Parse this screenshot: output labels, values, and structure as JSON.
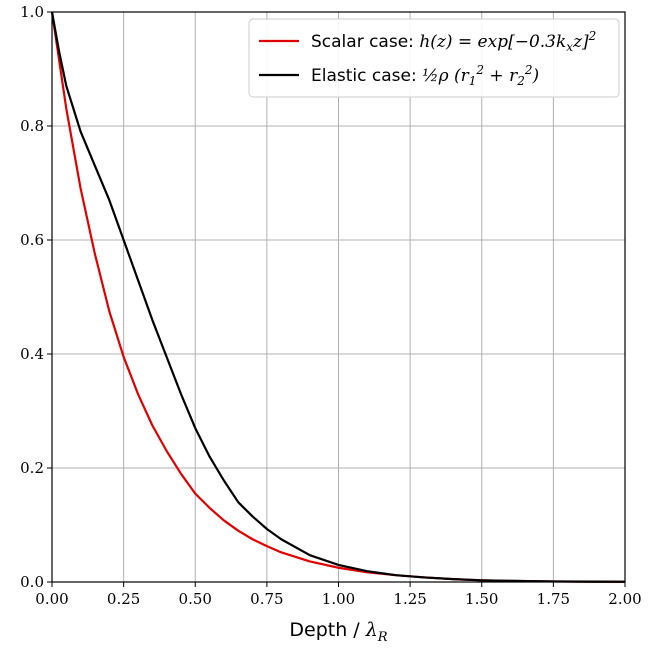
{
  "chart_data": {
    "type": "line",
    "title": "",
    "xlabel": "Depth / λ_R",
    "xlabel_text": "Depth / ",
    "xlabel_math": "λ",
    "xlabel_math_sub": "R",
    "ylabel": "",
    "xlim": [
      0,
      2
    ],
    "ylim": [
      0,
      1
    ],
    "x_ticks": [
      "0.00",
      "0.25",
      "0.50",
      "0.75",
      "1.00",
      "1.25",
      "1.50",
      "1.75",
      "2.00"
    ],
    "x_tick_values": [
      0,
      0.25,
      0.5,
      0.75,
      1.0,
      1.25,
      1.5,
      1.75,
      2.0
    ],
    "y_ticks": [
      "0.0",
      "0.2",
      "0.4",
      "0.6",
      "0.8",
      "1.0"
    ],
    "y_tick_values": [
      0,
      0.2,
      0.4,
      0.6,
      0.8,
      1.0
    ],
    "grid": true,
    "legend_position": "top-right",
    "series": [
      {
        "name": "Scalar case: h(z) = exp[−0.3k_x z]^2",
        "legend_prefix": "Scalar case: ",
        "legend_math": "h(z) = exp[−0.3k",
        "legend_math_sub": "x",
        "legend_math_tail": "z]",
        "legend_math_sup": "2",
        "color": "#e00000",
        "x": [
          0,
          0.05,
          0.1,
          0.15,
          0.2,
          0.25,
          0.3,
          0.35,
          0.4,
          0.45,
          0.5,
          0.55,
          0.6,
          0.65,
          0.7,
          0.75,
          0.8,
          0.9,
          1.0,
          1.1,
          1.2,
          1.25,
          1.3,
          1.4,
          1.5,
          1.6,
          1.75,
          1.9,
          2.0
        ],
        "y": [
          1.0,
          0.83,
          0.69,
          0.575,
          0.475,
          0.395,
          0.33,
          0.275,
          0.23,
          0.19,
          0.155,
          0.13,
          0.108,
          0.09,
          0.075,
          0.063,
          0.052,
          0.036,
          0.025,
          0.017,
          0.012,
          0.01,
          0.008,
          0.005,
          0.003,
          0.002,
          0.001,
          0.0005,
          0.0003
        ]
      },
      {
        "name": "Elastic case: ½ρ(r₁² + r₂²)",
        "legend_prefix": "Elastic case: ",
        "legend_math": "½ρ (r",
        "legend_math_sub": "1",
        "legend_math_sup": "2",
        "legend_math_mid": " + r",
        "legend_math_sub2": "2",
        "legend_math_sup2": "2",
        "legend_math_tail": ")",
        "color": "#000000",
        "x": [
          0,
          0.025,
          0.05,
          0.1,
          0.15,
          0.2,
          0.25,
          0.3,
          0.35,
          0.4,
          0.45,
          0.5,
          0.55,
          0.6,
          0.65,
          0.7,
          0.75,
          0.8,
          0.9,
          1.0,
          1.1,
          1.2,
          1.25,
          1.3,
          1.4,
          1.5,
          1.6,
          1.75,
          1.9,
          2.0
        ],
        "y": [
          1.0,
          0.93,
          0.87,
          0.79,
          0.73,
          0.67,
          0.6,
          0.53,
          0.46,
          0.395,
          0.33,
          0.27,
          0.22,
          0.178,
          0.14,
          0.115,
          0.093,
          0.075,
          0.047,
          0.03,
          0.019,
          0.012,
          0.01,
          0.008,
          0.005,
          0.003,
          0.002,
          0.001,
          0.0006,
          0.0004
        ]
      }
    ]
  }
}
